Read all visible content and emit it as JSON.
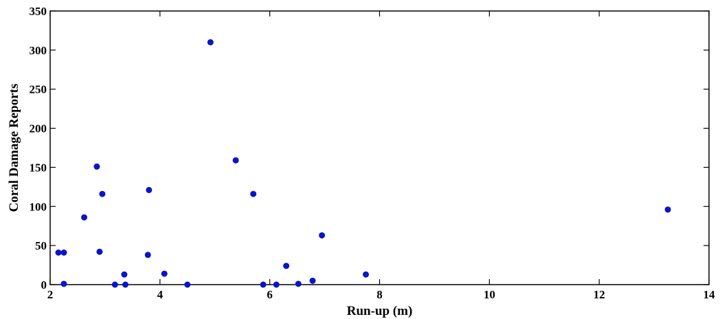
{
  "chart_data": {
    "type": "scatter",
    "title": "",
    "xlabel": "Run-up (m)",
    "ylabel": "Coral Damage Reports",
    "xlim": [
      2,
      14
    ],
    "ylim": [
      0,
      350
    ],
    "xticks": [
      2,
      4,
      6,
      8,
      10,
      12,
      14
    ],
    "yticks": [
      0,
      50,
      100,
      150,
      200,
      250,
      300,
      350
    ],
    "xtick_labels": [
      "2",
      "4",
      "6",
      "8",
      "10",
      "12",
      "14"
    ],
    "ytick_labels": [
      "0",
      "50",
      "100",
      "150",
      "200",
      "250",
      "300",
      "350"
    ],
    "grid": false,
    "legend": "none",
    "marker_color": "#0a14c8",
    "points": [
      {
        "x": 2.15,
        "y": 41
      },
      {
        "x": 2.25,
        "y": 41
      },
      {
        "x": 2.25,
        "y": 1
      },
      {
        "x": 2.62,
        "y": 86
      },
      {
        "x": 2.85,
        "y": 151
      },
      {
        "x": 2.9,
        "y": 42
      },
      {
        "x": 2.95,
        "y": 116
      },
      {
        "x": 3.18,
        "y": 0
      },
      {
        "x": 3.35,
        "y": 13
      },
      {
        "x": 3.37,
        "y": 0
      },
      {
        "x": 3.78,
        "y": 38
      },
      {
        "x": 3.8,
        "y": 121
      },
      {
        "x": 4.08,
        "y": 14
      },
      {
        "x": 4.5,
        "y": 0
      },
      {
        "x": 4.92,
        "y": 310
      },
      {
        "x": 5.38,
        "y": 159
      },
      {
        "x": 5.7,
        "y": 116
      },
      {
        "x": 5.88,
        "y": 0
      },
      {
        "x": 6.12,
        "y": 0
      },
      {
        "x": 6.3,
        "y": 24
      },
      {
        "x": 6.52,
        "y": 1
      },
      {
        "x": 6.78,
        "y": 5
      },
      {
        "x": 6.95,
        "y": 63
      },
      {
        "x": 7.75,
        "y": 13
      },
      {
        "x": 13.25,
        "y": 96
      }
    ]
  }
}
